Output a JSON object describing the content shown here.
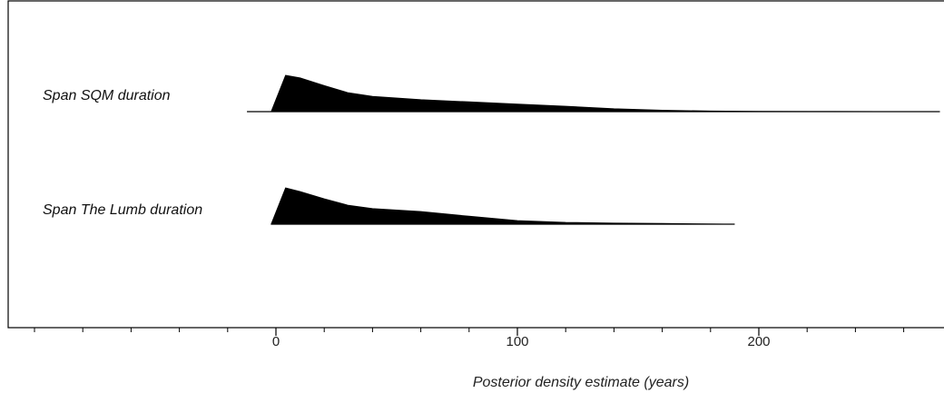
{
  "chart_data": {
    "type": "area",
    "title": "",
    "xlabel": "Posterior density estimate (years)",
    "ylabel": "",
    "xlim": [
      -100,
      275
    ],
    "x_ticks": [
      {
        "value": 0,
        "label": "0"
      },
      {
        "value": 100,
        "label": "100"
      },
      {
        "value": 200,
        "label": "200"
      }
    ],
    "minor_ticks": [
      -100,
      -80,
      -60,
      -40,
      -20,
      20,
      40,
      60,
      80,
      120,
      140,
      160,
      180,
      220,
      240,
      260
    ],
    "grid": false,
    "legend": "none",
    "series": [
      {
        "name": "Span SQM duration",
        "baseline_range": [
          -12,
          275
        ],
        "x": [
          -2,
          4,
          10,
          20,
          30,
          40,
          60,
          80,
          100,
          120,
          140,
          160,
          180,
          200,
          230,
          275
        ],
        "density": [
          0,
          1.0,
          0.93,
          0.72,
          0.52,
          0.42,
          0.33,
          0.27,
          0.21,
          0.15,
          0.08,
          0.04,
          0.018,
          0.01,
          0.005,
          0.0
        ]
      },
      {
        "name": "Span The Lumb duration",
        "baseline_range": [
          -2,
          190
        ],
        "x": [
          -2,
          4,
          10,
          20,
          30,
          40,
          60,
          80,
          100,
          120,
          140,
          160,
          190
        ],
        "density": [
          0,
          1.0,
          0.9,
          0.7,
          0.52,
          0.43,
          0.35,
          0.22,
          0.1,
          0.05,
          0.03,
          0.02,
          0.0
        ]
      }
    ],
    "colors": {
      "fill": "#000000",
      "frame": "#000000"
    }
  }
}
